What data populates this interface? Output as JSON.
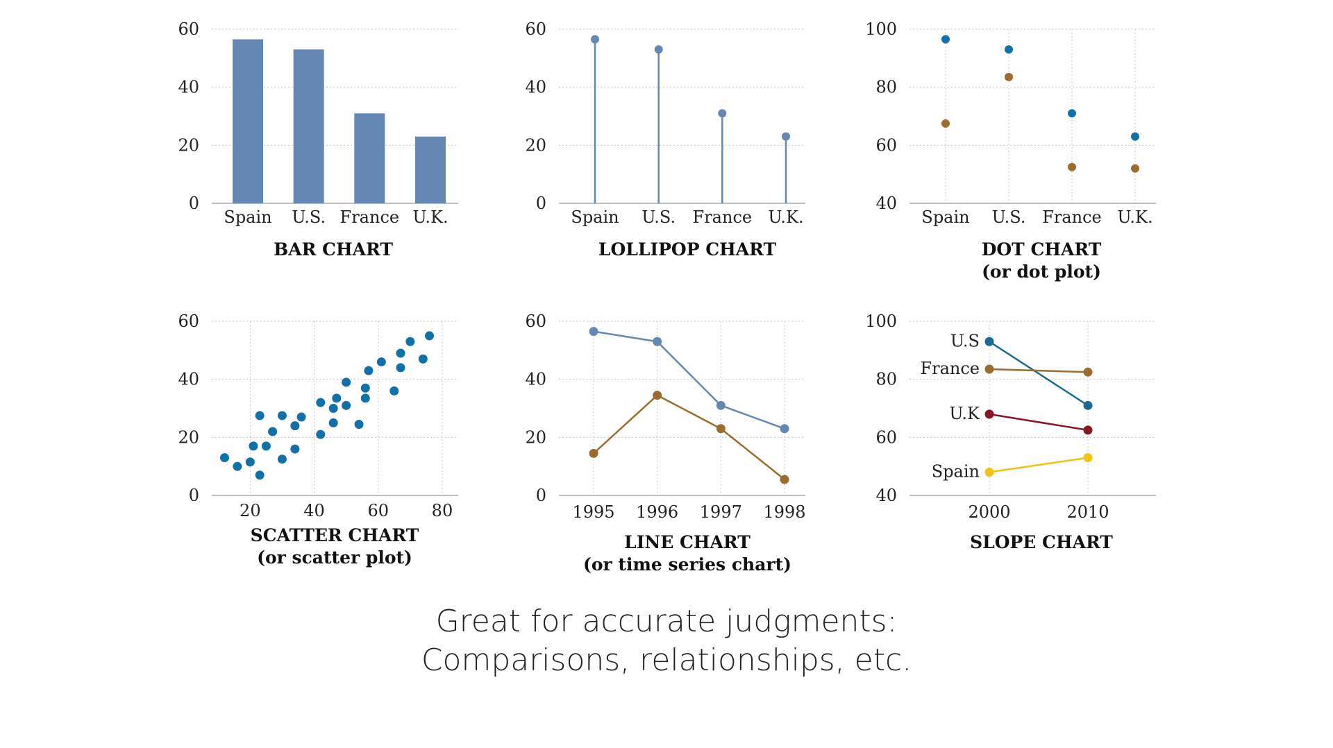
{
  "colors": {
    "steel_blue": "#6587b3",
    "dot_blue": "#1170a8",
    "brown": "#9c6b30",
    "dark_red": "#8a1622",
    "gold": "#f2c315",
    "slope_blue": "#1c6a94",
    "grid": "#c8c8c8",
    "axis": "#999999"
  },
  "caption": {
    "line1": "Great for accurate judgments:",
    "line2": "Comparisons, relationships, etc."
  },
  "chart_data": [
    {
      "type": "bar",
      "title": [
        "BAR CHART"
      ],
      "categories": [
        "Spain",
        "U.S.",
        "France",
        "U.K."
      ],
      "values": [
        56.5,
        53,
        31,
        23
      ],
      "ylim": [
        0,
        60
      ],
      "yticks": [
        0,
        20,
        40,
        60
      ],
      "grid": true
    },
    {
      "type": "lollipop",
      "title": [
        "LOLLIPOP CHART"
      ],
      "categories": [
        "Spain",
        "U.S.",
        "France",
        "U.K."
      ],
      "values": [
        56.5,
        53,
        31,
        23
      ],
      "ylim": [
        0,
        60
      ],
      "yticks": [
        0,
        20,
        40,
        60
      ],
      "grid": true
    },
    {
      "type": "dot",
      "title": [
        "DOT CHART",
        "(or dot plot)"
      ],
      "categories": [
        "Spain",
        "U.S.",
        "France",
        "U.K."
      ],
      "series": [
        {
          "values": [
            96.5,
            93,
            71,
            63
          ]
        },
        {
          "values": [
            67.5,
            83.5,
            52.5,
            52
          ]
        }
      ],
      "ylim": [
        40,
        100
      ],
      "yticks": [
        40,
        60,
        80,
        100
      ],
      "grid": true
    },
    {
      "type": "scatter",
      "title": [
        "SCATTER CHART",
        "(or scatter plot)"
      ],
      "points": [
        [
          12,
          13
        ],
        [
          16,
          10
        ],
        [
          20,
          11.5
        ],
        [
          21,
          17
        ],
        [
          23,
          27.5
        ],
        [
          23,
          7
        ],
        [
          25,
          17
        ],
        [
          27,
          22
        ],
        [
          30,
          27.5
        ],
        [
          30,
          12.5
        ],
        [
          34,
          24
        ],
        [
          34,
          16
        ],
        [
          36,
          27
        ],
        [
          42,
          32
        ],
        [
          42,
          21
        ],
        [
          46,
          30
        ],
        [
          46,
          25
        ],
        [
          47,
          33.5
        ],
        [
          50,
          39
        ],
        [
          50,
          31
        ],
        [
          54,
          24.5
        ],
        [
          56,
          37
        ],
        [
          56,
          33.5
        ],
        [
          57,
          43
        ],
        [
          61,
          46
        ],
        [
          65,
          36
        ],
        [
          67,
          44
        ],
        [
          67,
          49
        ],
        [
          70,
          53
        ],
        [
          74,
          47
        ],
        [
          76,
          55
        ]
      ],
      "xticks": [
        20,
        40,
        60,
        80
      ],
      "xlim": [
        8,
        85
      ],
      "yticks": [
        0,
        20,
        40,
        60
      ],
      "ylim": [
        0,
        60
      ],
      "grid": true
    },
    {
      "type": "line",
      "title": [
        "LINE CHART",
        "(or time series chart)"
      ],
      "x": [
        "1995",
        "1996",
        "1997",
        "1998"
      ],
      "series": [
        {
          "values": [
            56.5,
            53,
            31,
            23
          ]
        },
        {
          "values": [
            14.5,
            34.5,
            23,
            5.5
          ]
        }
      ],
      "ylim": [
        0,
        60
      ],
      "yticks": [
        0,
        20,
        40,
        60
      ],
      "grid": true
    },
    {
      "type": "slope",
      "title": [
        "SLOPE CHART"
      ],
      "x": [
        "2000",
        "2010"
      ],
      "series": [
        {
          "name": "U.S",
          "values": [
            93,
            71
          ]
        },
        {
          "name": "France",
          "values": [
            83.5,
            82.5
          ]
        },
        {
          "name": "U.K",
          "values": [
            68,
            62.5
          ]
        },
        {
          "name": "Spain",
          "values": [
            48,
            53
          ]
        }
      ],
      "ylim": [
        40,
        100
      ],
      "yticks": [
        40,
        60,
        80,
        100
      ],
      "grid": true
    }
  ]
}
